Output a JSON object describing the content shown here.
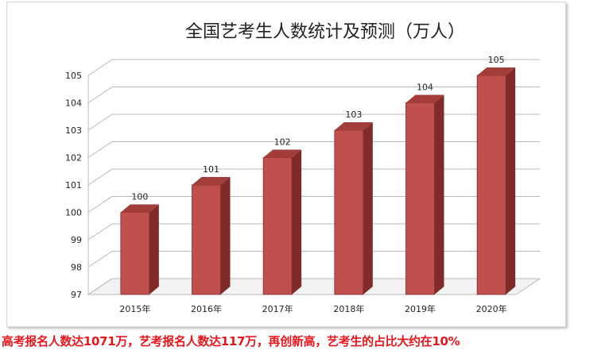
{
  "chart_data": {
    "type": "bar",
    "title": "全国艺考生人数统计及预测（万人）",
    "categories": [
      "2015年",
      "2016年",
      "2017年",
      "2018年",
      "2019年",
      "2020年"
    ],
    "values": [
      100,
      101,
      102,
      103,
      104,
      105
    ],
    "data_labels": [
      "100",
      "101",
      "102",
      "103",
      "104",
      "105"
    ],
    "yticks": [
      97,
      98,
      99,
      100,
      101,
      102,
      103,
      104,
      105
    ],
    "ylim": [
      97,
      105
    ],
    "xlabel": "",
    "ylabel": "",
    "grid": true,
    "legend": "none",
    "style": "3d-column",
    "colors": {
      "bar_front": "#c0504d",
      "bar_side": "#7e2b2a",
      "bar_top": "#a23d3a",
      "gridline": "#b8b8b8"
    }
  },
  "caption": "高考报名人数达1071万，艺考报名人数达117万，再创新高，艺考生的占比大约在10%"
}
